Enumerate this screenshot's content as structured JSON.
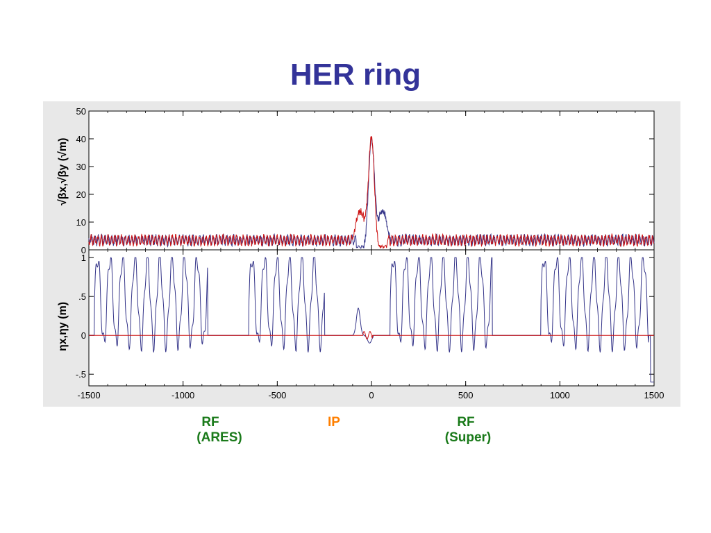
{
  "slide": {
    "title": "HER ring"
  },
  "chart_data": [
    {
      "type": "line",
      "ylabel": "√βx,√βy (√m)",
      "ylim": [
        0,
        50
      ],
      "xlim": [
        -1500,
        1500
      ],
      "yticks": [
        "50",
        "40",
        "30",
        "20",
        "10",
        "0"
      ],
      "ytick_values": [
        50,
        40,
        30,
        20,
        10,
        0
      ],
      "series": [
        {
          "color": "#333388",
          "values": []
        },
        {
          "color": "#cc1111",
          "values": []
        }
      ]
    },
    {
      "type": "line",
      "ylabel": "ηx,ηy (m)",
      "ylim": [
        -0.65,
        1.1
      ],
      "xlim": [
        -1500,
        1500
      ],
      "yticks": [
        "1",
        ".5",
        "0",
        "-.5"
      ],
      "ytick_values": [
        1,
        0.5,
        0,
        -0.5
      ],
      "xticks": [
        "-1500",
        "-1000",
        "-500",
        "0",
        "500",
        "1000",
        "1500"
      ],
      "xtick_values": [
        -1500,
        -1000,
        -500,
        0,
        500,
        1000,
        1500
      ],
      "series": [
        {
          "color": "#333388",
          "values": []
        },
        {
          "color": "#cc1111",
          "values": []
        }
      ]
    }
  ],
  "annotations": {
    "rf_ares_line1": "RF",
    "rf_ares_line2": "(ARES)",
    "ip": "IP",
    "rf_super_line1": "RF",
    "rf_super_line2": "(Super)"
  }
}
